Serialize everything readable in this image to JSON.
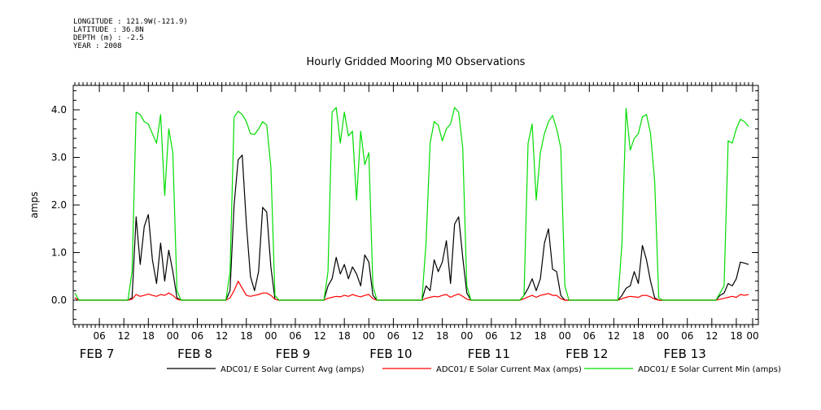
{
  "header": {
    "longitude": "LONGITUDE : 121.9W(-121.9)",
    "latitude": "LATITUDE : 36.8N",
    "depth": "DEPTH (m) : -2.5",
    "year": "YEAR : 2008"
  },
  "chart_data": {
    "type": "line",
    "title": "Hourly Gridded Mooring M0 Observations",
    "ylabel": "amps",
    "ylim": [
      -0.5,
      4.5
    ],
    "xlim": [
      0,
      166
    ],
    "y_ticks": [
      0.0,
      1.0,
      2.0,
      3.0,
      4.0
    ],
    "y_tick_labels": [
      "0.0",
      "1.0",
      "2.0",
      "3.0",
      "4.0"
    ],
    "x_hour_ticks": [
      {
        "hour": 6,
        "label": "06"
      },
      {
        "hour": 12,
        "label": "12"
      },
      {
        "hour": 18,
        "label": "18"
      },
      {
        "hour": 24,
        "label": "00"
      },
      {
        "hour": 30,
        "label": "06"
      },
      {
        "hour": 36,
        "label": "12"
      },
      {
        "hour": 42,
        "label": "18"
      },
      {
        "hour": 48,
        "label": "00"
      },
      {
        "hour": 54,
        "label": "06"
      },
      {
        "hour": 60,
        "label": "12"
      },
      {
        "hour": 66,
        "label": "18"
      },
      {
        "hour": 72,
        "label": "00"
      },
      {
        "hour": 78,
        "label": "06"
      },
      {
        "hour": 84,
        "label": "12"
      },
      {
        "hour": 90,
        "label": "18"
      },
      {
        "hour": 96,
        "label": "00"
      },
      {
        "hour": 102,
        "label": "06"
      },
      {
        "hour": 108,
        "label": "12"
      },
      {
        "hour": 114,
        "label": "18"
      },
      {
        "hour": 120,
        "label": "00"
      },
      {
        "hour": 126,
        "label": "06"
      },
      {
        "hour": 132,
        "label": "12"
      },
      {
        "hour": 138,
        "label": "18"
      },
      {
        "hour": 144,
        "label": "00"
      },
      {
        "hour": 150,
        "label": "06"
      },
      {
        "hour": 156,
        "label": "12"
      },
      {
        "hour": 162,
        "label": "18"
      },
      {
        "hour": 166,
        "label": "00"
      }
    ],
    "x_date_labels": [
      {
        "hour": 5,
        "label": "FEB  7"
      },
      {
        "hour": 29,
        "label": "FEB  8"
      },
      {
        "hour": 53,
        "label": "FEB  9"
      },
      {
        "hour": 77,
        "label": "FEB 10"
      },
      {
        "hour": 101,
        "label": "FEB 11"
      },
      {
        "hour": 125,
        "label": "FEB 12"
      },
      {
        "hour": 149,
        "label": "FEB 13"
      }
    ],
    "legend_position": "bottom",
    "series": [
      {
        "name": "ADC01/ E Solar Current Avg (amps)",
        "color": "#000000",
        "points": [
          [
            0,
            0.05
          ],
          [
            1,
            0.0
          ],
          [
            13,
            0.0
          ],
          [
            14,
            0.05
          ],
          [
            15,
            1.75
          ],
          [
            16,
            0.75
          ],
          [
            17,
            1.55
          ],
          [
            18,
            1.8
          ],
          [
            19,
            0.85
          ],
          [
            20,
            0.35
          ],
          [
            21,
            1.2
          ],
          [
            22,
            0.4
          ],
          [
            23,
            1.05
          ],
          [
            24,
            0.6
          ],
          [
            25,
            0.05
          ],
          [
            26,
            0.0
          ],
          [
            37,
            0.0
          ],
          [
            38,
            0.2
          ],
          [
            39,
            2.0
          ],
          [
            40,
            2.95
          ],
          [
            41,
            3.05
          ],
          [
            42,
            1.6
          ],
          [
            43,
            0.5
          ],
          [
            44,
            0.2
          ],
          [
            45,
            0.6
          ],
          [
            46,
            1.95
          ],
          [
            47,
            1.85
          ],
          [
            48,
            0.7
          ],
          [
            49,
            0.02
          ],
          [
            50,
            0.0
          ],
          [
            61,
            0.0
          ],
          [
            62,
            0.3
          ],
          [
            63,
            0.45
          ],
          [
            64,
            0.9
          ],
          [
            65,
            0.55
          ],
          [
            66,
            0.75
          ],
          [
            67,
            0.45
          ],
          [
            68,
            0.7
          ],
          [
            69,
            0.55
          ],
          [
            70,
            0.3
          ],
          [
            71,
            0.95
          ],
          [
            72,
            0.8
          ],
          [
            73,
            0.1
          ],
          [
            74,
            0.0
          ],
          [
            85,
            0.0
          ],
          [
            86,
            0.3
          ],
          [
            87,
            0.2
          ],
          [
            88,
            0.85
          ],
          [
            89,
            0.6
          ],
          [
            90,
            0.8
          ],
          [
            91,
            1.25
          ],
          [
            92,
            0.35
          ],
          [
            93,
            1.6
          ],
          [
            94,
            1.75
          ],
          [
            95,
            0.9
          ],
          [
            96,
            0.15
          ],
          [
            97,
            0.0
          ],
          [
            109,
            0.0
          ],
          [
            110,
            0.1
          ],
          [
            111,
            0.25
          ],
          [
            112,
            0.45
          ],
          [
            113,
            0.2
          ],
          [
            114,
            0.45
          ],
          [
            115,
            1.2
          ],
          [
            116,
            1.5
          ],
          [
            117,
            0.65
          ],
          [
            118,
            0.6
          ],
          [
            119,
            0.1
          ],
          [
            120,
            0.0
          ],
          [
            133,
            0.0
          ],
          [
            134,
            0.1
          ],
          [
            135,
            0.25
          ],
          [
            136,
            0.3
          ],
          [
            137,
            0.6
          ],
          [
            138,
            0.35
          ],
          [
            139,
            1.15
          ],
          [
            140,
            0.85
          ],
          [
            141,
            0.4
          ],
          [
            142,
            0.05
          ],
          [
            143,
            0.0
          ],
          [
            157,
            0.0
          ],
          [
            158,
            0.1
          ],
          [
            159,
            0.15
          ],
          [
            160,
            0.35
          ],
          [
            161,
            0.3
          ],
          [
            162,
            0.45
          ],
          [
            163,
            0.8
          ],
          [
            164,
            0.78
          ],
          [
            165,
            0.75
          ]
        ]
      },
      {
        "name": "ADC01/ E Solar Current Max (amps)",
        "color": "#ff0000",
        "points": [
          [
            0,
            0.05
          ],
          [
            1,
            0.0
          ],
          [
            13,
            0.0
          ],
          [
            14,
            0.02
          ],
          [
            15,
            0.12
          ],
          [
            16,
            0.08
          ],
          [
            17,
            0.1
          ],
          [
            18,
            0.13
          ],
          [
            19,
            0.1
          ],
          [
            20,
            0.08
          ],
          [
            21,
            0.12
          ],
          [
            22,
            0.1
          ],
          [
            23,
            0.15
          ],
          [
            24,
            0.1
          ],
          [
            25,
            0.02
          ],
          [
            26,
            0.0
          ],
          [
            37,
            0.0
          ],
          [
            38,
            0.05
          ],
          [
            39,
            0.2
          ],
          [
            40,
            0.4
          ],
          [
            41,
            0.25
          ],
          [
            42,
            0.1
          ],
          [
            43,
            0.08
          ],
          [
            44,
            0.1
          ],
          [
            45,
            0.12
          ],
          [
            46,
            0.15
          ],
          [
            47,
            0.15
          ],
          [
            48,
            0.1
          ],
          [
            49,
            0.02
          ],
          [
            50,
            0.0
          ],
          [
            61,
            0.0
          ],
          [
            62,
            0.04
          ],
          [
            63,
            0.06
          ],
          [
            64,
            0.08
          ],
          [
            65,
            0.07
          ],
          [
            66,
            0.1
          ],
          [
            67,
            0.08
          ],
          [
            68,
            0.12
          ],
          [
            69,
            0.09
          ],
          [
            70,
            0.07
          ],
          [
            71,
            0.1
          ],
          [
            72,
            0.12
          ],
          [
            73,
            0.03
          ],
          [
            74,
            0.0
          ],
          [
            85,
            0.0
          ],
          [
            86,
            0.04
          ],
          [
            87,
            0.06
          ],
          [
            88,
            0.08
          ],
          [
            89,
            0.07
          ],
          [
            90,
            0.1
          ],
          [
            91,
            0.12
          ],
          [
            92,
            0.06
          ],
          [
            93,
            0.1
          ],
          [
            94,
            0.13
          ],
          [
            95,
            0.08
          ],
          [
            96,
            0.02
          ],
          [
            97,
            0.0
          ],
          [
            109,
            0.0
          ],
          [
            110,
            0.03
          ],
          [
            111,
            0.07
          ],
          [
            112,
            0.1
          ],
          [
            113,
            0.06
          ],
          [
            114,
            0.1
          ],
          [
            115,
            0.12
          ],
          [
            116,
            0.14
          ],
          [
            117,
            0.1
          ],
          [
            118,
            0.1
          ],
          [
            119,
            0.03
          ],
          [
            120,
            0.0
          ],
          [
            133,
            0.0
          ],
          [
            134,
            0.03
          ],
          [
            135,
            0.06
          ],
          [
            136,
            0.08
          ],
          [
            137,
            0.07
          ],
          [
            138,
            0.06
          ],
          [
            139,
            0.1
          ],
          [
            140,
            0.1
          ],
          [
            141,
            0.07
          ],
          [
            142,
            0.02
          ],
          [
            143,
            0.0
          ],
          [
            157,
            0.0
          ],
          [
            158,
            0.02
          ],
          [
            159,
            0.04
          ],
          [
            160,
            0.06
          ],
          [
            161,
            0.08
          ],
          [
            162,
            0.06
          ],
          [
            163,
            0.12
          ],
          [
            164,
            0.1
          ],
          [
            165,
            0.12
          ]
        ]
      },
      {
        "name": "ADC01/ E Solar Current Min (amps)",
        "color": "#00dd00",
        "points": [
          [
            0,
            0.15
          ],
          [
            1,
            0.0
          ],
          [
            13,
            0.0
          ],
          [
            14,
            0.6
          ],
          [
            15,
            3.95
          ],
          [
            16,
            3.9
          ],
          [
            17,
            3.75
          ],
          [
            18,
            3.7
          ],
          [
            19,
            3.5
          ],
          [
            20,
            3.3
          ],
          [
            21,
            3.9
          ],
          [
            22,
            2.2
          ],
          [
            23,
            3.6
          ],
          [
            24,
            3.1
          ],
          [
            25,
            0.2
          ],
          [
            26,
            0.0
          ],
          [
            37,
            0.0
          ],
          [
            38,
            0.6
          ],
          [
            39,
            3.85
          ],
          [
            40,
            3.97
          ],
          [
            41,
            3.9
          ],
          [
            42,
            3.75
          ],
          [
            43,
            3.5
          ],
          [
            44,
            3.48
          ],
          [
            45,
            3.6
          ],
          [
            46,
            3.75
          ],
          [
            47,
            3.68
          ],
          [
            48,
            2.8
          ],
          [
            49,
            0.1
          ],
          [
            50,
            0.0
          ],
          [
            61,
            0.0
          ],
          [
            62,
            0.6
          ],
          [
            63,
            3.95
          ],
          [
            64,
            4.05
          ],
          [
            65,
            3.3
          ],
          [
            66,
            3.95
          ],
          [
            67,
            3.45
          ],
          [
            68,
            3.55
          ],
          [
            69,
            2.1
          ],
          [
            70,
            3.55
          ],
          [
            71,
            2.85
          ],
          [
            72,
            3.1
          ],
          [
            73,
            0.3
          ],
          [
            74,
            0.0
          ],
          [
            85,
            0.0
          ],
          [
            86,
            1.2
          ],
          [
            87,
            3.3
          ],
          [
            88,
            3.75
          ],
          [
            89,
            3.68
          ],
          [
            90,
            3.35
          ],
          [
            91,
            3.6
          ],
          [
            92,
            3.7
          ],
          [
            93,
            4.05
          ],
          [
            94,
            3.95
          ],
          [
            95,
            3.2
          ],
          [
            96,
            0.3
          ],
          [
            97,
            0.0
          ],
          [
            109,
            0.0
          ],
          [
            110,
            0.1
          ],
          [
            111,
            3.3
          ],
          [
            112,
            3.7
          ],
          [
            113,
            2.1
          ],
          [
            114,
            3.1
          ],
          [
            115,
            3.5
          ],
          [
            116,
            3.75
          ],
          [
            117,
            3.88
          ],
          [
            118,
            3.6
          ],
          [
            119,
            3.2
          ],
          [
            120,
            0.3
          ],
          [
            121,
            0.0
          ],
          [
            133,
            0.0
          ],
          [
            134,
            1.2
          ],
          [
            135,
            4.03
          ],
          [
            136,
            3.15
          ],
          [
            137,
            3.4
          ],
          [
            138,
            3.5
          ],
          [
            139,
            3.85
          ],
          [
            140,
            3.9
          ],
          [
            141,
            3.5
          ],
          [
            142,
            2.5
          ],
          [
            143,
            0.05
          ],
          [
            144,
            0.0
          ],
          [
            157,
            0.0
          ],
          [
            158,
            0.15
          ],
          [
            159,
            0.3
          ],
          [
            160,
            3.35
          ],
          [
            161,
            3.3
          ],
          [
            162,
            3.6
          ],
          [
            163,
            3.8
          ],
          [
            164,
            3.75
          ],
          [
            165,
            3.65
          ]
        ]
      }
    ]
  }
}
